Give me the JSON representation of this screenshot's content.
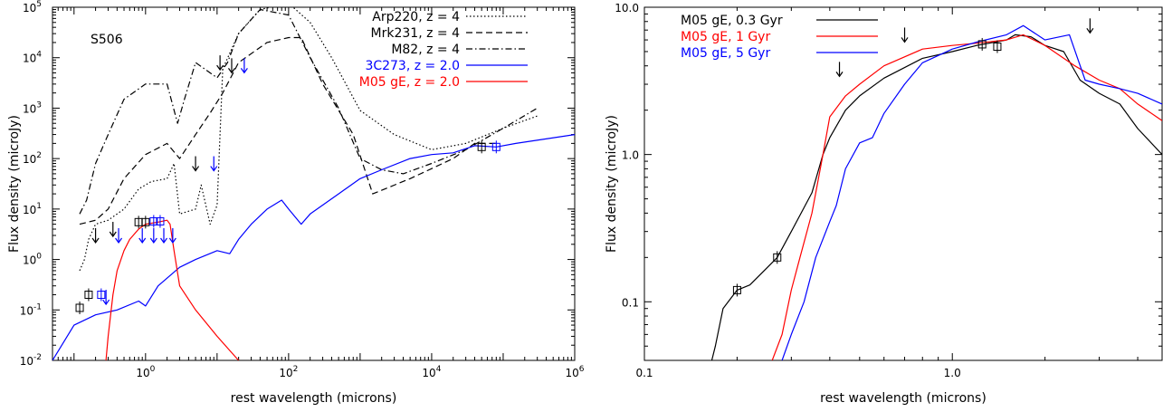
{
  "chart_data": [
    {
      "type": "line",
      "panel_label": "S506",
      "xlabel": "rest wavelength (microns)",
      "ylabel": "Flux density (microJy)",
      "xscale": "log",
      "yscale": "log",
      "xlim": [
        0.05,
        1000000
      ],
      "ylim": [
        0.01,
        100000
      ],
      "x_tick_labels": [
        {
          "value": 1,
          "base": "10",
          "exp": "0"
        },
        {
          "value": 100,
          "base": "10",
          "exp": "2"
        },
        {
          "value": 10000,
          "base": "10",
          "exp": "4"
        },
        {
          "value": 1000000,
          "base": "10",
          "exp": "6"
        }
      ],
      "y_tick_labels": [
        {
          "value": 0.01,
          "base": "10",
          "exp": "-2"
        },
        {
          "value": 0.1,
          "base": "10",
          "exp": "-1"
        },
        {
          "value": 1,
          "base": "10",
          "exp": "0"
        },
        {
          "value": 10,
          "base": "10",
          "exp": "1"
        },
        {
          "value": 100,
          "base": "10",
          "exp": "2"
        },
        {
          "value": 1000,
          "base": "10",
          "exp": "3"
        },
        {
          "value": 10000,
          "base": "10",
          "exp": "4"
        },
        {
          "value": 100000,
          "base": "10",
          "exp": "5"
        }
      ],
      "legend_position": "top-right",
      "series": [
        {
          "name": "Arp220, z = 4",
          "color": "#000000",
          "dash": "dotted",
          "points": [
            [
              0.12,
              0.6
            ],
            [
              0.14,
              1
            ],
            [
              0.16,
              2.5
            ],
            [
              0.2,
              5
            ],
            [
              0.3,
              6
            ],
            [
              0.5,
              10
            ],
            [
              0.8,
              25
            ],
            [
              1.2,
              35
            ],
            [
              2,
              40
            ],
            [
              2.5,
              80
            ],
            [
              3,
              8
            ],
            [
              5,
              10
            ],
            [
              6,
              30
            ],
            [
              8,
              5
            ],
            [
              10,
              12
            ],
            [
              12,
              6000
            ],
            [
              20,
              30000
            ],
            [
              40,
              90000
            ],
            [
              100,
              120000
            ],
            [
              200,
              50000
            ],
            [
              400,
              10000
            ],
            [
              1000,
              900
            ],
            [
              3000,
              300
            ],
            [
              10000,
              150
            ],
            [
              30000,
              200
            ],
            [
              100000,
              400
            ],
            [
              300000,
              700
            ]
          ]
        },
        {
          "name": "Mrk231, z = 4",
          "color": "#000000",
          "dash": "dashed",
          "points": [
            [
              0.12,
              5
            ],
            [
              0.2,
              6
            ],
            [
              0.3,
              10
            ],
            [
              0.5,
              40
            ],
            [
              1,
              120
            ],
            [
              2,
              200
            ],
            [
              3,
              100
            ],
            [
              5,
              300
            ],
            [
              8,
              800
            ],
            [
              12,
              2000
            ],
            [
              20,
              8000
            ],
            [
              50,
              20000
            ],
            [
              100,
              25000
            ],
            [
              150,
              25000
            ],
            [
              300,
              3000
            ],
            [
              800,
              300
            ],
            [
              1500,
              20
            ],
            [
              5000,
              40
            ],
            [
              20000,
              100
            ],
            [
              40000,
              200
            ],
            [
              80000,
              200
            ]
          ]
        },
        {
          "name": "M82,   z = 4",
          "color": "#000000",
          "dash": "dashdot",
          "points": [
            [
              0.12,
              8
            ],
            [
              0.15,
              15
            ],
            [
              0.2,
              80
            ],
            [
              0.3,
              300
            ],
            [
              0.5,
              1500
            ],
            [
              1,
              3000
            ],
            [
              2,
              3000
            ],
            [
              2.8,
              500
            ],
            [
              3.5,
              1500
            ],
            [
              5,
              8000
            ],
            [
              8,
              5000
            ],
            [
              10,
              4000
            ],
            [
              14,
              8000
            ],
            [
              20,
              30000
            ],
            [
              40,
              90000
            ],
            [
              100,
              70000
            ],
            [
              200,
              10000
            ],
            [
              500,
              1000
            ],
            [
              1000,
              100
            ],
            [
              2000,
              60
            ],
            [
              4000,
              50
            ],
            [
              10000,
              80
            ],
            [
              30000,
              150
            ],
            [
              100000,
              400
            ],
            [
              300000,
              1000
            ]
          ]
        },
        {
          "name": "3C273,  z = 2.0",
          "color": "#0000ff",
          "dash": "solid",
          "points": [
            [
              0.05,
              0.01
            ],
            [
              0.1,
              0.05
            ],
            [
              0.2,
              0.08
            ],
            [
              0.4,
              0.1
            ],
            [
              0.8,
              0.15
            ],
            [
              1,
              0.12
            ],
            [
              1.5,
              0.3
            ],
            [
              3,
              0.7
            ],
            [
              5,
              1
            ],
            [
              10,
              1.5
            ],
            [
              15,
              1.3
            ],
            [
              20,
              2.5
            ],
            [
              30,
              5
            ],
            [
              50,
              10
            ],
            [
              80,
              15
            ],
            [
              100,
              10
            ],
            [
              150,
              5
            ],
            [
              200,
              8
            ],
            [
              500,
              20
            ],
            [
              1000,
              40
            ],
            [
              2000,
              60
            ],
            [
              5000,
              100
            ],
            [
              10000,
              120
            ],
            [
              20000,
              130
            ],
            [
              40000,
              180
            ],
            [
              80000,
              170
            ],
            [
              150000,
              200
            ],
            [
              1000000,
              300
            ]
          ]
        },
        {
          "name": "M05 gE, z = 2.0",
          "color": "#ff0000",
          "dash": "solid",
          "points": [
            [
              0.28,
              0.01
            ],
            [
              0.3,
              0.03
            ],
            [
              0.35,
              0.2
            ],
            [
              0.4,
              0.6
            ],
            [
              0.5,
              1.5
            ],
            [
              0.6,
              2.5
            ],
            [
              0.8,
              4
            ],
            [
              1,
              5
            ],
            [
              1.5,
              5.5
            ],
            [
              2,
              6
            ],
            [
              2.2,
              5
            ],
            [
              2.5,
              1.5
            ],
            [
              3,
              0.3
            ],
            [
              5,
              0.1
            ],
            [
              10,
              0.03
            ],
            [
              20,
              0.01
            ]
          ]
        }
      ],
      "markers": [
        {
          "kind": "box",
          "color": "#000000",
          "x": 0.12,
          "y": 0.11
        },
        {
          "kind": "box",
          "color": "#000000",
          "x": 0.16,
          "y": 0.2
        },
        {
          "kind": "box",
          "color": "#000000",
          "x": 0.8,
          "y": 5.5
        },
        {
          "kind": "box",
          "color": "#000000",
          "x": 1.0,
          "y": 5.5
        },
        {
          "kind": "box",
          "color": "#000000",
          "x": 50000,
          "y": 170
        },
        {
          "kind": "box",
          "color": "#0000ff",
          "x": 0.24,
          "y": 0.2
        },
        {
          "kind": "box",
          "color": "#0000ff",
          "x": 1.3,
          "y": 5.7
        },
        {
          "kind": "box",
          "color": "#0000ff",
          "x": 1.6,
          "y": 5.7
        },
        {
          "kind": "box",
          "color": "#0000ff",
          "x": 80000,
          "y": 170
        },
        {
          "kind": "arrow",
          "color": "#000000",
          "x": 0.2,
          "y": 3
        },
        {
          "kind": "arrow",
          "color": "#000000",
          "x": 0.35,
          "y": 4
        },
        {
          "kind": "arrow",
          "color": "#000000",
          "x": 5,
          "y": 80
        },
        {
          "kind": "arrow",
          "color": "#000000",
          "x": 11,
          "y": 8000
        },
        {
          "kind": "arrow",
          "color": "#000000",
          "x": 16,
          "y": 7000
        },
        {
          "kind": "arrow",
          "color": "#0000ff",
          "x": 0.42,
          "y": 3
        },
        {
          "kind": "arrow",
          "color": "#0000ff",
          "x": 0.28,
          "y": 0.18
        },
        {
          "kind": "arrow",
          "color": "#0000ff",
          "x": 0.9,
          "y": 3
        },
        {
          "kind": "arrow",
          "color": "#0000ff",
          "x": 1.3,
          "y": 3
        },
        {
          "kind": "arrow",
          "color": "#0000ff",
          "x": 1.8,
          "y": 3
        },
        {
          "kind": "arrow",
          "color": "#0000ff",
          "x": 2.4,
          "y": 3
        },
        {
          "kind": "arrow",
          "color": "#0000ff",
          "x": 9,
          "y": 80
        },
        {
          "kind": "arrow",
          "color": "#0000ff",
          "x": 24,
          "y": 7000
        }
      ]
    },
    {
      "type": "line",
      "xlabel": "rest wavelength (microns)",
      "ylabel": "Flux density (microJy)",
      "xscale": "log",
      "yscale": "log",
      "xlim": [
        0.1,
        4.8
      ],
      "ylim": [
        0.04,
        10
      ],
      "x_tick_labels": [
        {
          "value": 0.1,
          "label": "0.1"
        },
        {
          "value": 1,
          "label": "1.0"
        }
      ],
      "y_tick_labels": [
        {
          "value": 0.1,
          "label": "0.1"
        },
        {
          "value": 1,
          "label": "1.0"
        },
        {
          "value": 10,
          "label": "10.0"
        }
      ],
      "legend_position": "top-left",
      "series": [
        {
          "name": "M05 gE, 0.3 Gyr",
          "color": "#000000",
          "dash": "solid",
          "points": [
            [
              0.155,
              0.04
            ],
            [
              0.16,
              0.03
            ],
            [
              0.17,
              0.05
            ],
            [
              0.18,
              0.09
            ],
            [
              0.2,
              0.12
            ],
            [
              0.22,
              0.13
            ],
            [
              0.25,
              0.17
            ],
            [
              0.27,
              0.2
            ],
            [
              0.3,
              0.3
            ],
            [
              0.35,
              0.55
            ],
            [
              0.38,
              1.0
            ],
            [
              0.4,
              1.3
            ],
            [
              0.45,
              2.0
            ],
            [
              0.5,
              2.5
            ],
            [
              0.6,
              3.3
            ],
            [
              0.8,
              4.5
            ],
            [
              1.0,
              5.0
            ],
            [
              1.2,
              5.5
            ],
            [
              1.5,
              6.0
            ],
            [
              1.6,
              6.5
            ],
            [
              1.8,
              6.3
            ],
            [
              2.0,
              5.5
            ],
            [
              2.3,
              5.0
            ],
            [
              2.6,
              3.2
            ],
            [
              3.0,
              2.6
            ],
            [
              3.5,
              2.2
            ],
            [
              4.0,
              1.5
            ],
            [
              4.8,
              1.0
            ]
          ]
        },
        {
          "name": "M05 gE, 1 Gyr",
          "color": "#ff0000",
          "dash": "solid",
          "points": [
            [
              0.26,
              0.04
            ],
            [
              0.28,
              0.06
            ],
            [
              0.3,
              0.12
            ],
            [
              0.32,
              0.2
            ],
            [
              0.35,
              0.4
            ],
            [
              0.38,
              1.0
            ],
            [
              0.4,
              1.8
            ],
            [
              0.45,
              2.5
            ],
            [
              0.5,
              3.0
            ],
            [
              0.6,
              4.0
            ],
            [
              0.8,
              5.2
            ],
            [
              1.0,
              5.5
            ],
            [
              1.2,
              5.7
            ],
            [
              1.5,
              6.0
            ],
            [
              1.7,
              6.5
            ],
            [
              2.0,
              5.5
            ],
            [
              2.5,
              4.0
            ],
            [
              3.0,
              3.2
            ],
            [
              3.5,
              2.8
            ],
            [
              4.0,
              2.2
            ],
            [
              4.8,
              1.7
            ]
          ]
        },
        {
          "name": "M05 gE, 5 Gyr",
          "color": "#0000ff",
          "dash": "solid",
          "points": [
            [
              0.28,
              0.04
            ],
            [
              0.3,
              0.06
            ],
            [
              0.33,
              0.1
            ],
            [
              0.36,
              0.2
            ],
            [
              0.4,
              0.35
            ],
            [
              0.42,
              0.45
            ],
            [
              0.45,
              0.8
            ],
            [
              0.5,
              1.2
            ],
            [
              0.55,
              1.3
            ],
            [
              0.6,
              1.9
            ],
            [
              0.7,
              3.0
            ],
            [
              0.8,
              4.2
            ],
            [
              1.0,
              5.2
            ],
            [
              1.2,
              5.8
            ],
            [
              1.5,
              6.5
            ],
            [
              1.7,
              7.5
            ],
            [
              2.0,
              6.0
            ],
            [
              2.4,
              6.5
            ],
            [
              2.7,
              3.2
            ],
            [
              3.0,
              3.0
            ],
            [
              3.5,
              2.8
            ],
            [
              4.0,
              2.6
            ],
            [
              4.8,
              2.2
            ]
          ]
        }
      ],
      "markers": [
        {
          "kind": "box",
          "color": "#000000",
          "x": 0.2,
          "y": 0.12
        },
        {
          "kind": "box",
          "color": "#000000",
          "x": 0.27,
          "y": 0.2
        },
        {
          "kind": "box",
          "color": "#000000",
          "x": 1.25,
          "y": 5.6
        },
        {
          "kind": "box",
          "color": "#000000",
          "x": 1.4,
          "y": 5.4
        },
        {
          "kind": "arrow",
          "color": "#000000",
          "x": 0.43,
          "y": 3.8
        },
        {
          "kind": "arrow",
          "color": "#000000",
          "x": 0.7,
          "y": 6.5
        },
        {
          "kind": "arrow",
          "color": "#000000",
          "x": 2.8,
          "y": 7.5
        }
      ]
    }
  ]
}
